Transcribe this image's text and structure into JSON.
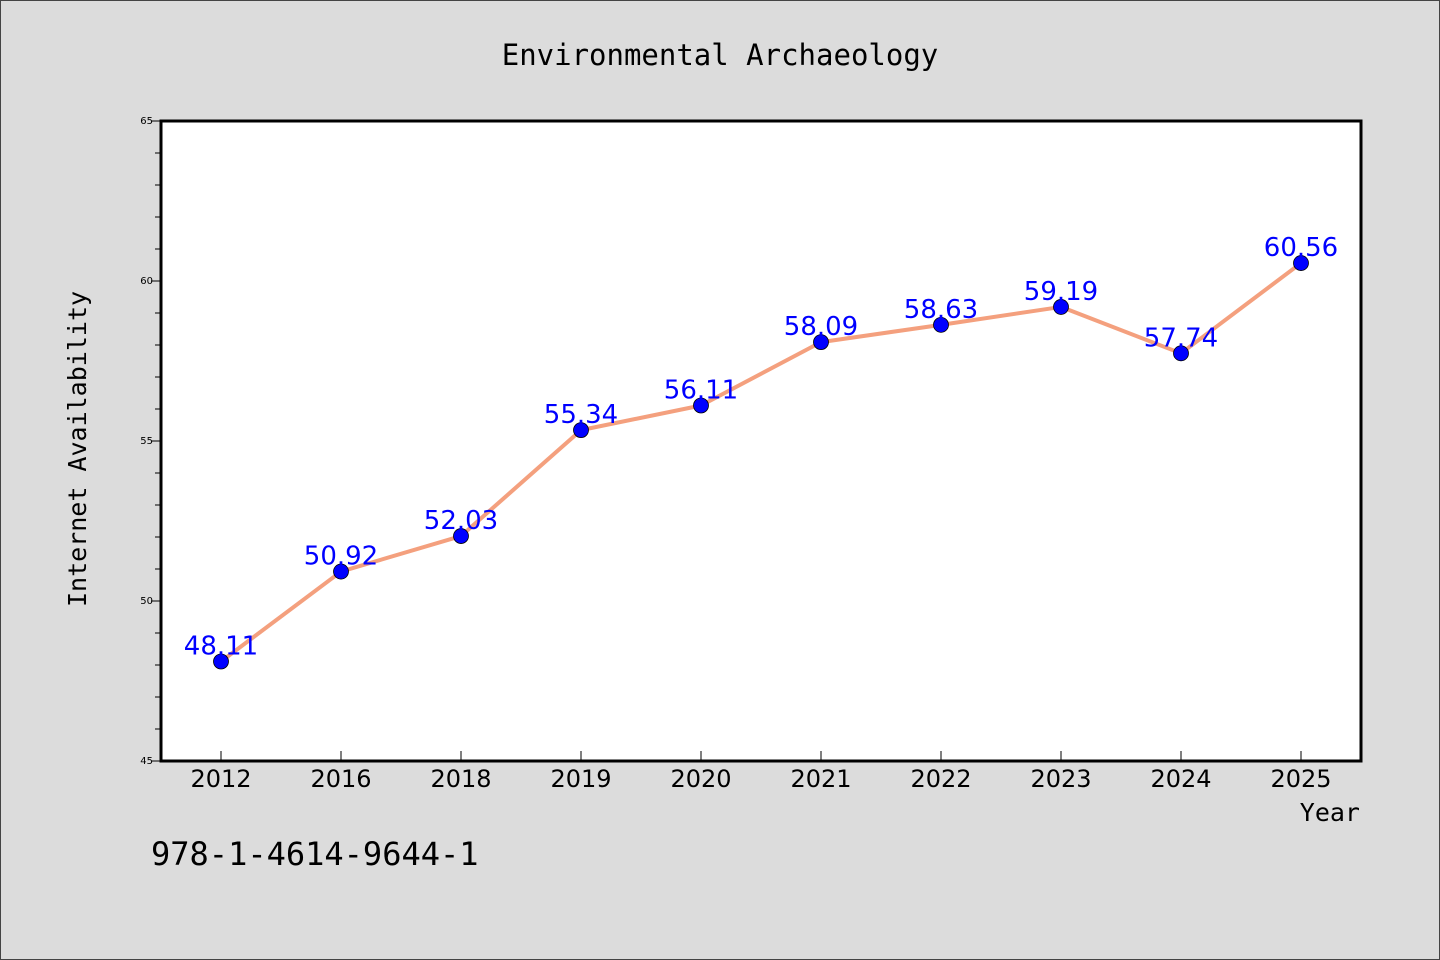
{
  "chart_data": {
    "type": "line",
    "title": "Environmental Archaeology",
    "xlabel": "Year",
    "ylabel": "Internet Availability",
    "categories": [
      "2012",
      "2016",
      "2018",
      "2019",
      "2020",
      "2021",
      "2022",
      "2023",
      "2024",
      "2025"
    ],
    "values": [
      48.11,
      50.92,
      52.03,
      55.34,
      56.11,
      58.09,
      58.63,
      59.19,
      57.74,
      60.56
    ],
    "data_labels": [
      "48.11",
      "50.92",
      "52.03",
      "55.34",
      "56.11",
      "58.09",
      "58.63",
      "59.19",
      "57.74",
      "60.56"
    ],
    "ylim": [
      45,
      65
    ],
    "yticks": [
      "45",
      "50",
      "55",
      "60",
      "65"
    ],
    "grid": false,
    "legend": "none",
    "line_color": "#f4a07e",
    "marker_color": "#0000ff",
    "label_color": "#0000ff"
  },
  "footer": {
    "isbn": "978-1-4614-9644-1"
  }
}
